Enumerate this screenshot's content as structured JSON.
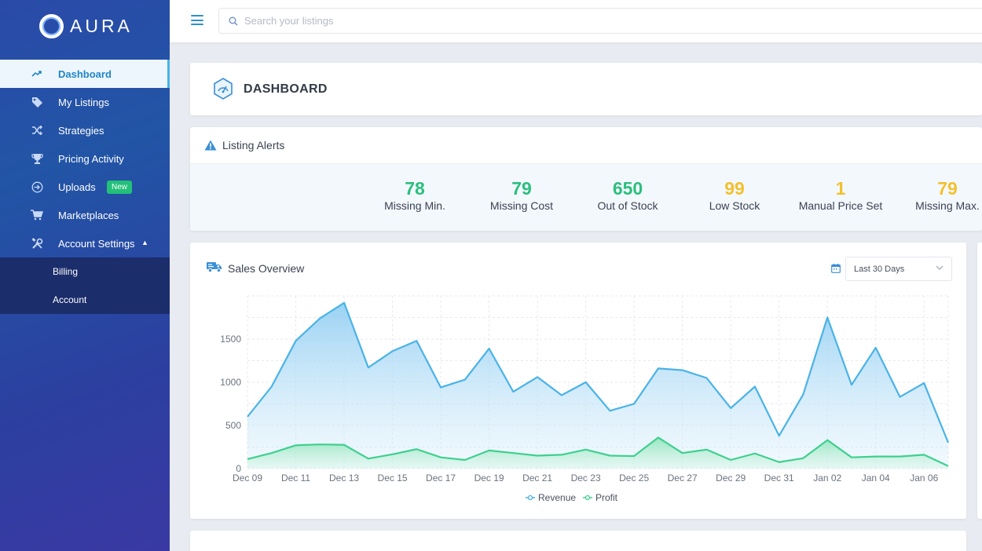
{
  "app": {
    "logo_text": "AURA"
  },
  "sidebar": {
    "items": [
      {
        "label": "Dashboard",
        "icon": "trending-up-icon",
        "active": true
      },
      {
        "label": "My Listings",
        "icon": "tag-icon"
      },
      {
        "label": "Strategies",
        "icon": "shuffle-icon"
      },
      {
        "label": "Pricing Activity",
        "icon": "trophy-icon"
      },
      {
        "label": "Uploads",
        "icon": "sign-in-icon",
        "badge": "New"
      },
      {
        "label": "Marketplaces",
        "icon": "cart-icon"
      },
      {
        "label": "Account Settings",
        "icon": "tools-icon",
        "expanded": true
      }
    ],
    "subitems": [
      {
        "label": "Billing"
      },
      {
        "label": "Account"
      }
    ]
  },
  "topbar": {
    "search_placeholder": "Search your listings"
  },
  "dashboard": {
    "title": "DASHBOARD"
  },
  "alerts": {
    "title": "Listing Alerts",
    "stats": [
      {
        "value": "78",
        "label": "Missing Min.",
        "color": "#2bbf7e"
      },
      {
        "value": "79",
        "label": "Missing Cost",
        "color": "#2bbf7e"
      },
      {
        "value": "650",
        "label": "Out of Stock",
        "color": "#2bbf7e"
      },
      {
        "value": "99",
        "label": "Low Stock",
        "color": "#f2c12e"
      },
      {
        "value": "1",
        "label": "Manual Price Set",
        "color": "#f2c12e"
      },
      {
        "value": "79",
        "label": "Missing Max.",
        "color": "#f2c12e"
      }
    ]
  },
  "sales": {
    "title": "Sales Overview",
    "range": "Last 30 Days"
  },
  "chart_data": {
    "type": "area",
    "x": [
      "Dec 09",
      "Dec 10",
      "Dec 11",
      "Dec 12",
      "Dec 13",
      "Dec 14",
      "Dec 15",
      "Dec 16",
      "Dec 17",
      "Dec 18",
      "Dec 19",
      "Dec 20",
      "Dec 21",
      "Dec 22",
      "Dec 23",
      "Dec 24",
      "Dec 25",
      "Dec 26",
      "Dec 27",
      "Dec 28",
      "Dec 29",
      "Dec 30",
      "Dec 31",
      "Jan 01",
      "Jan 02",
      "Jan 03",
      "Jan 04",
      "Jan 05",
      "Jan 06",
      "Jan 07"
    ],
    "tick_labels": [
      "Dec 09",
      "Dec 11",
      "Dec 13",
      "Dec 15",
      "Dec 17",
      "Dec 19",
      "Dec 21",
      "Dec 23",
      "Dec 25",
      "Dec 27",
      "Dec 29",
      "Dec 31",
      "Jan 02",
      "Jan 04",
      "Jan 06"
    ],
    "series": [
      {
        "name": "Revenue",
        "color": "#4ab3e6",
        "values": [
          600,
          950,
          1480,
          1740,
          1920,
          1170,
          1360,
          1480,
          940,
          1030,
          1390,
          890,
          1060,
          850,
          1000,
          670,
          750,
          1160,
          1140,
          1050,
          700,
          950,
          380,
          860,
          1750,
          970,
          1400,
          830,
          990,
          300
        ]
      },
      {
        "name": "Profit",
        "color": "#3fd08f",
        "values": [
          110,
          180,
          270,
          280,
          275,
          115,
          165,
          225,
          130,
          100,
          210,
          180,
          150,
          160,
          220,
          150,
          145,
          360,
          180,
          220,
          100,
          175,
          75,
          120,
          330,
          130,
          140,
          140,
          160,
          30
        ]
      }
    ],
    "ylim": [
      0,
      2000
    ],
    "yticks": [
      0,
      500,
      1000,
      1500
    ],
    "grid": true,
    "legend": "bottom-center"
  }
}
